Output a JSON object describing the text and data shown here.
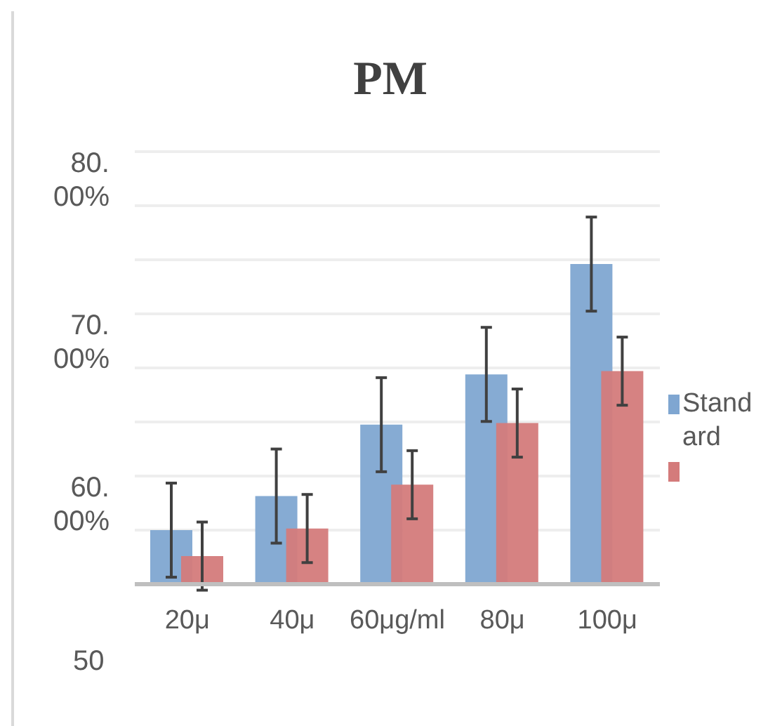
{
  "chart_data": {
    "type": "bar",
    "title": "PM",
    "categories": [
      "20μ",
      "40μ",
      "60μg/ml",
      "80μ",
      "100μ"
    ],
    "series": [
      {
        "name": "Standard",
        "color": "#7fa6d1",
        "values": [
          60.0,
          62.1,
          66.5,
          69.6,
          76.4
        ],
        "errors": [
          2.9,
          2.9,
          2.9,
          2.9,
          2.9
        ]
      },
      {
        "color": "#d47b7b",
        "values": [
          58.4,
          60.1,
          62.8,
          66.6,
          69.8
        ],
        "errors": [
          2.1,
          2.1,
          2.1,
          2.1,
          2.1
        ]
      }
    ],
    "ylim": [
      56.67,
      83.33
    ],
    "yticks": [
      {
        "value": 60,
        "label": "60.00%"
      },
      {
        "value": 63.33,
        "label": null
      },
      {
        "value": 66.67,
        "label": null
      },
      {
        "value": 70,
        "label": "70.00%"
      },
      {
        "value": 73.33,
        "label": null
      },
      {
        "value": 76.67,
        "label": null
      },
      {
        "value": 80,
        "label": "80.00%"
      },
      {
        "value": 83.33,
        "label": null
      }
    ],
    "annotations": [
      "50"
    ],
    "grid": "y",
    "legend": "right"
  }
}
